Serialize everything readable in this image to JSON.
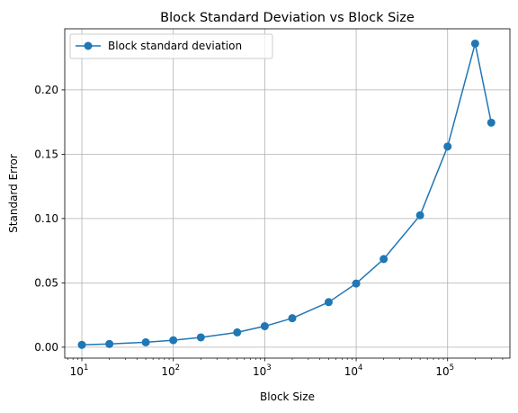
{
  "chart_data": {
    "type": "line",
    "title": "Block Standard Deviation vs Block Size",
    "xlabel": "Block Size",
    "ylabel": "Standard Error",
    "xscale": "log",
    "xlim": [
      6.5,
      480000
    ],
    "ylim": [
      -0.0085,
      0.2475
    ],
    "grid": true,
    "legend": "upper left",
    "x_ticks": [
      {
        "value": 10,
        "base": "10",
        "exp": "1"
      },
      {
        "value": 100,
        "base": "10",
        "exp": "2"
      },
      {
        "value": 1000,
        "base": "10",
        "exp": "3"
      },
      {
        "value": 10000,
        "base": "10",
        "exp": "4"
      },
      {
        "value": 100000,
        "base": "10",
        "exp": "5"
      }
    ],
    "y_ticks": [
      {
        "value": 0.0,
        "label": "0.00"
      },
      {
        "value": 0.05,
        "label": "0.05"
      },
      {
        "value": 0.1,
        "label": "0.10"
      },
      {
        "value": 0.15,
        "label": "0.15"
      },
      {
        "value": 0.2,
        "label": "0.20"
      }
    ],
    "series": [
      {
        "name": "Block standard deviation",
        "color": "#1f77b4",
        "marker": "circle",
        "x": [
          10,
          20,
          50,
          100,
          200,
          500,
          1000,
          2000,
          5000,
          10000,
          20000,
          50000,
          100000,
          200000,
          300000
        ],
        "y": [
          0.0018,
          0.0025,
          0.0038,
          0.0054,
          0.0076,
          0.0115,
          0.0163,
          0.0225,
          0.035,
          0.0495,
          0.0685,
          0.1025,
          0.156,
          0.236,
          0.1745
        ]
      }
    ]
  }
}
